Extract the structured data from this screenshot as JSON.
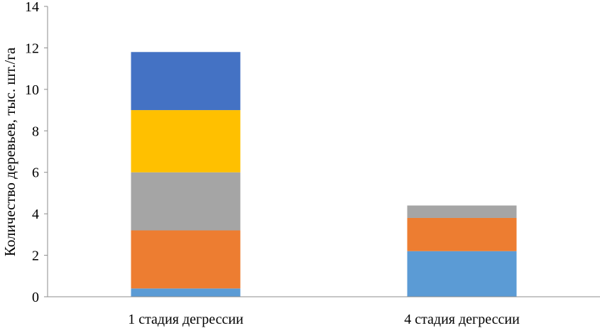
{
  "chart_data": {
    "type": "bar",
    "stacked": true,
    "title": "",
    "xlabel": "",
    "ylabel": "Количество деревьев, тыс. шт./га",
    "ylim": [
      0,
      14
    ],
    "yticks": [
      0,
      2,
      4,
      6,
      8,
      10,
      12,
      14
    ],
    "grid": false,
    "legend": "none",
    "categories": [
      "1 стадия дегрессии",
      "4 стадия дегрессии"
    ],
    "series": [
      {
        "color": "#5B9BD5",
        "values": [
          0.4,
          2.2
        ]
      },
      {
        "color": "#ED7D31",
        "values": [
          2.8,
          1.6
        ]
      },
      {
        "color": "#A5A5A5",
        "values": [
          2.8,
          0.6
        ]
      },
      {
        "color": "#FFC000",
        "values": [
          3.0,
          0
        ]
      },
      {
        "color": "#4472C4",
        "values": [
          2.8,
          0
        ]
      }
    ]
  }
}
